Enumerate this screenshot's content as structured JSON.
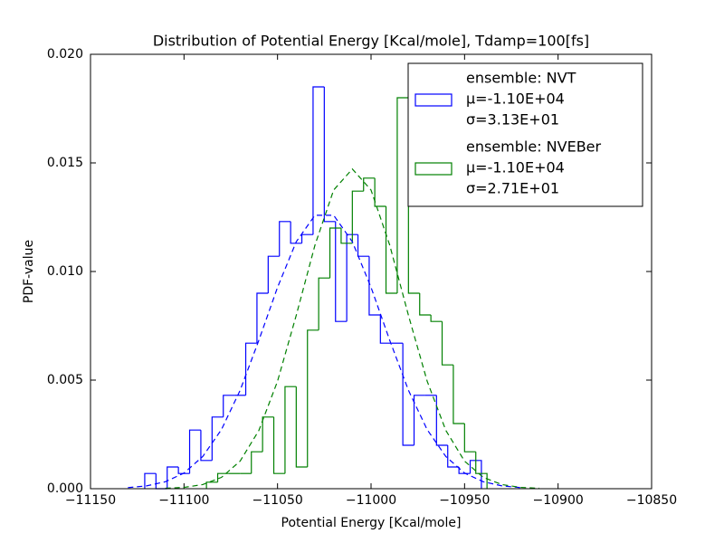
{
  "chart_data": {
    "type": "histogram",
    "title": "Distribution of Potential Energy [Kcal/mole], Tdamp=100[fs]",
    "xlabel": "Potential Energy [Kcal/mole]",
    "ylabel": "PDF-value",
    "xlim": [
      -11150,
      -10850
    ],
    "ylim": [
      0,
      0.02
    ],
    "xticks": [
      {
        "value": -11150,
        "label": "−11150"
      },
      {
        "value": -11100,
        "label": "−11100"
      },
      {
        "value": -11050,
        "label": "−11050"
      },
      {
        "value": -11000,
        "label": "−11000"
      },
      {
        "value": -10950,
        "label": "−10950"
      },
      {
        "value": -10900,
        "label": "−10900"
      },
      {
        "value": -10850,
        "label": "−10850"
      }
    ],
    "yticks": [
      {
        "value": 0,
        "label": "0.000"
      },
      {
        "value": 0.005,
        "label": "0.005"
      },
      {
        "value": 0.01,
        "label": "0.010"
      },
      {
        "value": 0.015,
        "label": "0.015"
      },
      {
        "value": 0.02,
        "label": "0.020"
      }
    ],
    "legend": "upper right",
    "series": [
      {
        "name": "ensemble: NVT",
        "stats": [
          "μ=-1.10E+04",
          "σ=3.13E+01"
        ],
        "color": "#0000ff",
        "bins": [
          -11121,
          -11115,
          -11109,
          -11103,
          -11097,
          -11091,
          -11085,
          -11079,
          -11073,
          -11067,
          -11061,
          -11055,
          -11049,
          -11043,
          -11037,
          -11031,
          -11025,
          -11019,
          -11013,
          -11007,
          -11001,
          -10995,
          -10989,
          -10983,
          -10977,
          -10971,
          -10965,
          -10959,
          -10953,
          -10947,
          -10941
        ],
        "values": [
          0.0007,
          0,
          0.001,
          0.0007,
          0.0027,
          0.0013,
          0.0033,
          0.0043,
          0.0043,
          0.0067,
          0.009,
          0.0107,
          0.0123,
          0.0113,
          0.0117,
          0.0185,
          0.0123,
          0.0077,
          0.0117,
          0.0107,
          0.008,
          0.0067,
          0.0067,
          0.002,
          0.0043,
          0.0043,
          0.002,
          0.001,
          0.0007,
          0.0013
        ]
      },
      {
        "name": "ensemble: NVEBer",
        "stats": [
          "μ=-1.10E+04",
          "σ=2.71E+01"
        ],
        "color": "#008000",
        "bins": [
          -11088,
          -11082,
          -11076,
          -11070,
          -11064,
          -11058,
          -11052,
          -11046,
          -11040,
          -11034,
          -11028,
          -11022,
          -11016,
          -11010,
          -11004,
          -10998,
          -10992,
          -10986,
          -10980,
          -10974,
          -10968,
          -10962,
          -10956,
          -10950,
          -10944,
          -10938
        ],
        "values": [
          0.0003,
          0.0007,
          0.0007,
          0.0007,
          0.0017,
          0.0033,
          0.0007,
          0.0047,
          0.001,
          0.0073,
          0.0097,
          0.012,
          0.0113,
          0.0137,
          0.0143,
          0.013,
          0.009,
          0.018,
          0.009,
          0.008,
          0.0077,
          0.0057,
          0.003,
          0.0017,
          0.0007
        ]
      }
    ],
    "fits": [
      {
        "color": "#0000ff",
        "style": "dashed",
        "x": [
          -11130,
          -11120,
          -11110,
          -11100,
          -11090,
          -11080,
          -11070,
          -11060,
          -11050,
          -11040,
          -11030,
          -11020,
          -11010,
          -11000,
          -10990,
          -10980,
          -10970,
          -10960,
          -10950,
          -10940,
          -10930,
          -10920
        ],
        "y": [
          5e-05,
          0.00013,
          0.00032,
          0.00072,
          0.00148,
          0.00272,
          0.00453,
          0.00683,
          0.00927,
          0.01137,
          0.01259,
          0.01259,
          0.01137,
          0.00927,
          0.00683,
          0.00453,
          0.00272,
          0.00148,
          0.00072,
          0.00032,
          0.00013,
          5e-05
        ]
      },
      {
        "color": "#008000",
        "style": "dashed",
        "x": [
          -11110,
          -11100,
          -11090,
          -11080,
          -11070,
          -11060,
          -11050,
          -11040,
          -11030,
          -11020,
          -11010,
          -11000,
          -10990,
          -10980,
          -10970,
          -10960,
          -10950,
          -10940,
          -10930,
          -10920,
          -10910
        ],
        "y": [
          2e-05,
          6e-05,
          0.00019,
          0.00052,
          0.00127,
          0.00268,
          0.00495,
          0.00798,
          0.01121,
          0.01375,
          0.01472,
          0.01375,
          0.01121,
          0.00798,
          0.00495,
          0.00268,
          0.00127,
          0.00052,
          0.00019,
          6e-05,
          2e-05
        ]
      }
    ]
  }
}
